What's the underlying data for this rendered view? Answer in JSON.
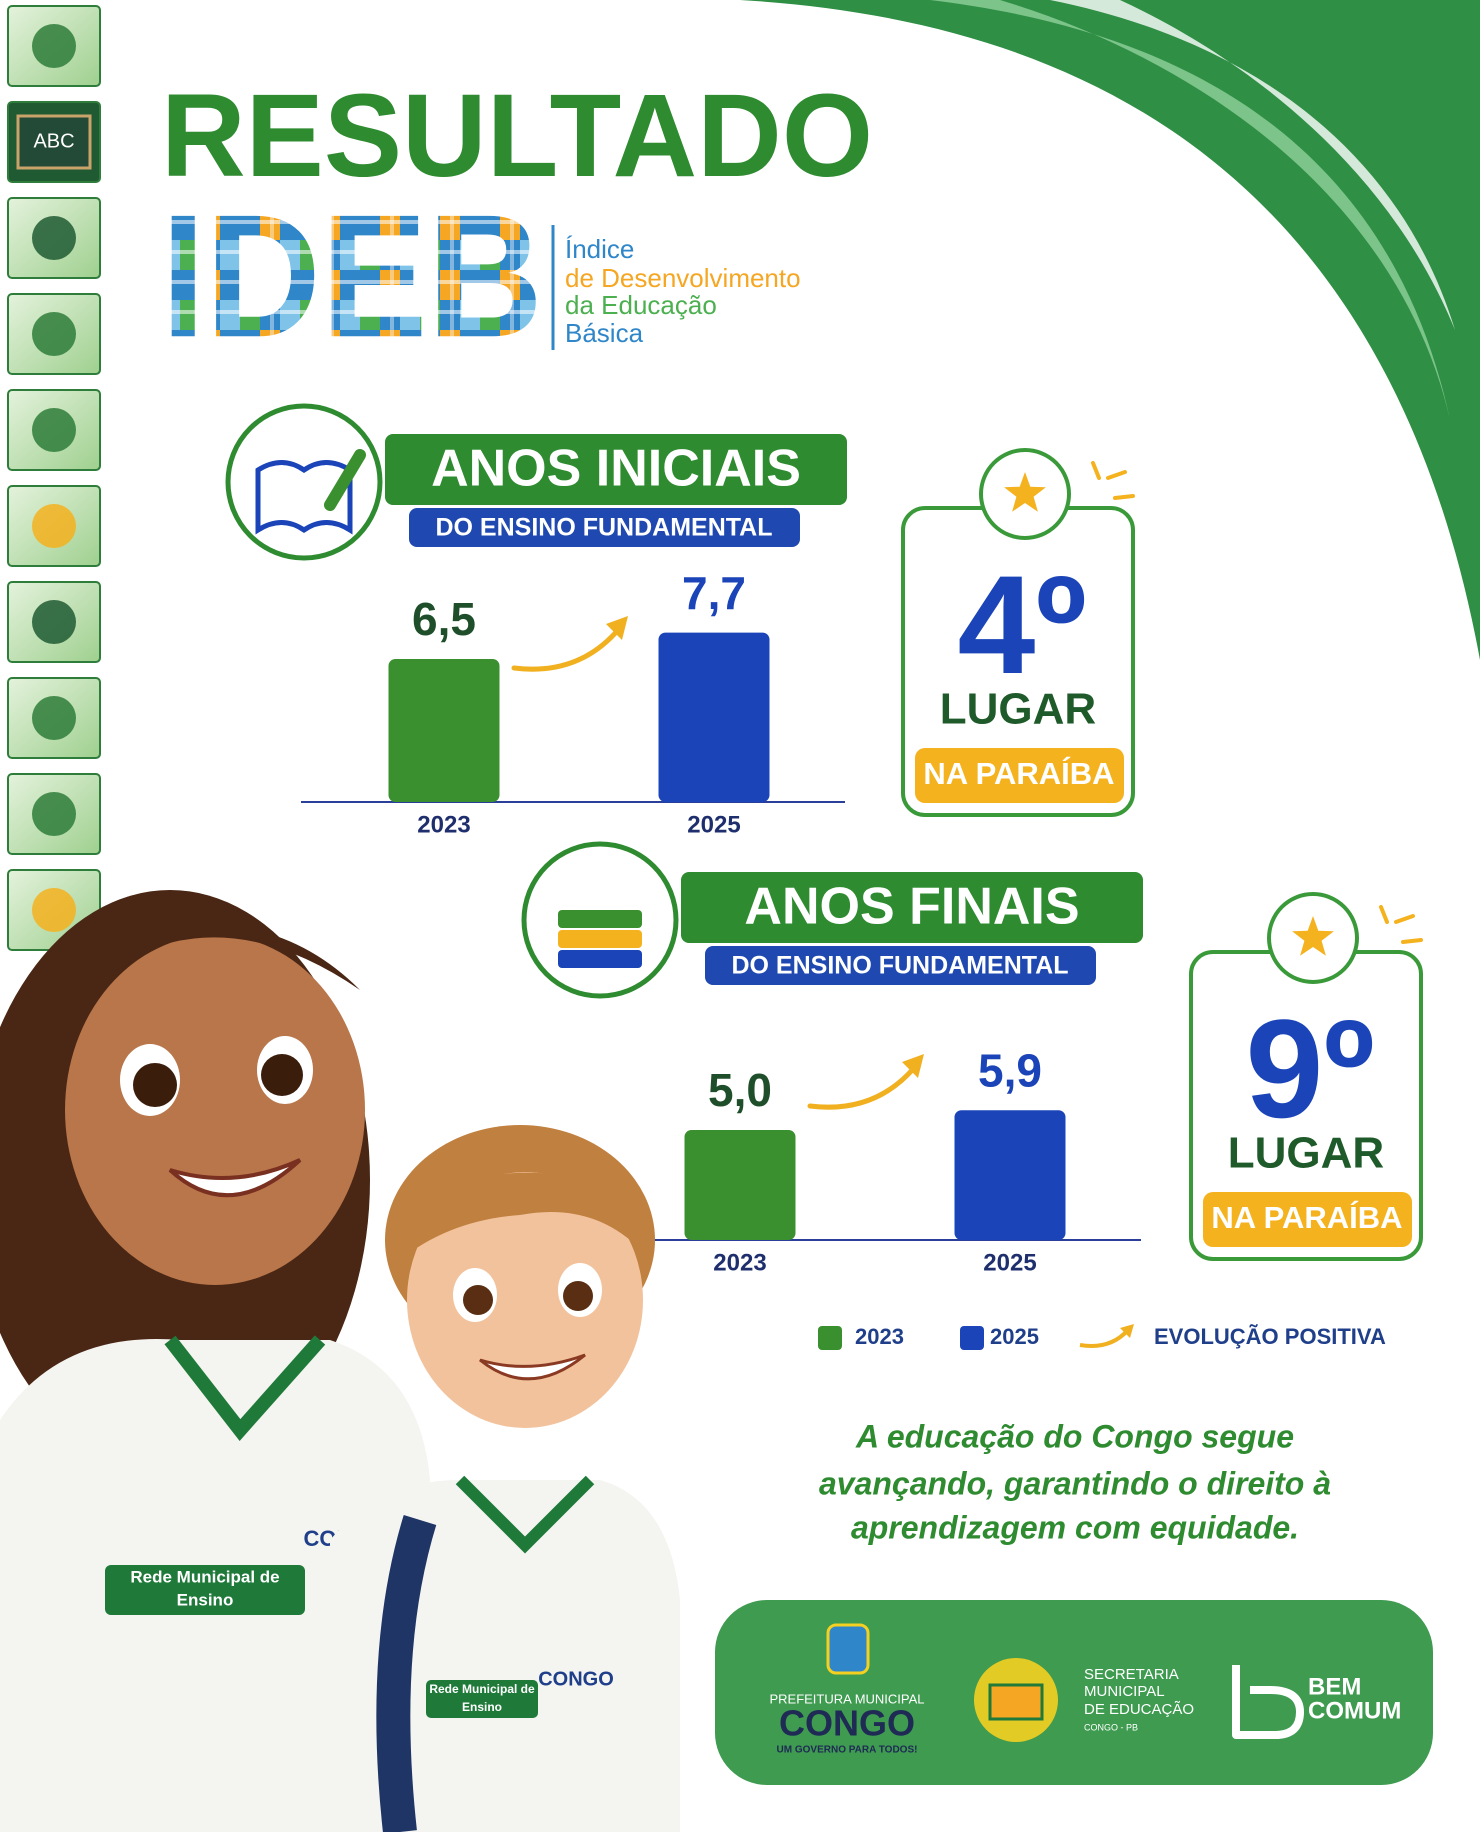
{
  "sidebar": {
    "chalkboard": "ABC"
  },
  "header": {
    "title": "RESULTADO",
    "logo": "IDEB",
    "logo_caption": [
      "Índice",
      "de Desenvolvimento",
      "da Educação",
      "Básica"
    ]
  },
  "chart_data": [
    {
      "type": "bar",
      "title": "ANOS INICIAIS",
      "subtitle": "DO ENSINO FUNDAMENTAL",
      "categories": [
        "2023",
        "2025"
      ],
      "values": [
        6.5,
        7.7
      ],
      "value_labels": [
        "6,5",
        "7,7"
      ],
      "colors": [
        "#3a8f2e",
        "#1a44b8"
      ],
      "rank": {
        "position": "4º",
        "label": "LUGAR",
        "region": "NA PARAÍBA"
      }
    },
    {
      "type": "bar",
      "title": "ANOS FINAIS",
      "subtitle": "DO ENSINO FUNDAMENTAL",
      "categories": [
        "2023",
        "2025"
      ],
      "values": [
        5.0,
        5.9
      ],
      "value_labels": [
        "5,0",
        "5,9"
      ],
      "colors": [
        "#3a8f2e",
        "#1a44b8"
      ],
      "rank": {
        "position": "9º",
        "label": "LUGAR",
        "region": "NA PARAÍBA"
      }
    }
  ],
  "legend": {
    "trend": "EVOLUÇÃO POSITIVA"
  },
  "message": [
    "A educação do Congo segue",
    "avançando, garantindo o direito à",
    "aprendizagem com equidade."
  ],
  "illustration": {
    "girl_shirt": [
      "Rede Municipal de",
      "Ensino"
    ],
    "girl_badge": "CONGO",
    "boy_shirt": [
      "Rede Municipal de",
      "Ensino"
    ],
    "boy_badge": "CONGO"
  },
  "footer": {
    "prefeitura": [
      "PREFEITURA MUNICIPAL",
      "CONGO",
      "UM GOVERNO PARA TODOS!"
    ],
    "secretaria": [
      "SECRETARIA",
      "MUNICIPAL",
      "DE EDUCAÇÃO",
      "CONGO - PB"
    ],
    "partner": [
      "BEM",
      "COMUM"
    ]
  }
}
